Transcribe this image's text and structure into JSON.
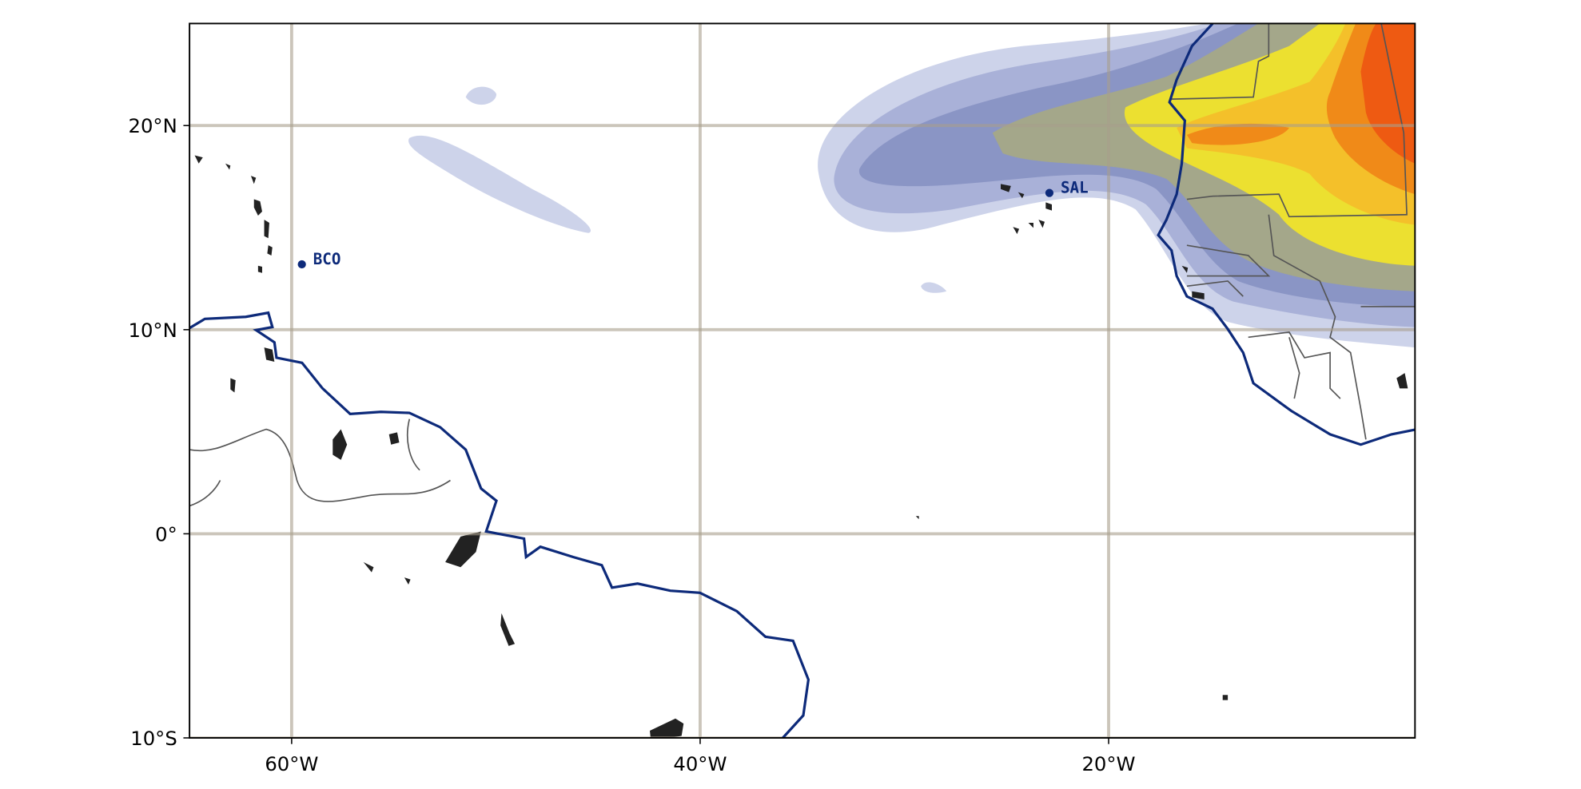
{
  "map": {
    "xlim": [
      -65,
      -5
    ],
    "ylim": [
      -10,
      25
    ],
    "xticks": [
      {
        "value": -60,
        "label": "60°W"
      },
      {
        "value": -40,
        "label": "40°W"
      },
      {
        "value": -20,
        "label": "20°W"
      }
    ],
    "yticks": [
      {
        "value": -10,
        "label": "10°S"
      },
      {
        "value": 0,
        "label": "0°"
      },
      {
        "value": 10,
        "label": "10°N"
      },
      {
        "value": 20,
        "label": "20°N"
      }
    ],
    "grid": true,
    "stations": [
      {
        "name": "BCO",
        "lon": -59.5,
        "lat": 13.2
      },
      {
        "name": "SAL",
        "lon": -22.9,
        "lat": 16.7
      }
    ]
  }
}
